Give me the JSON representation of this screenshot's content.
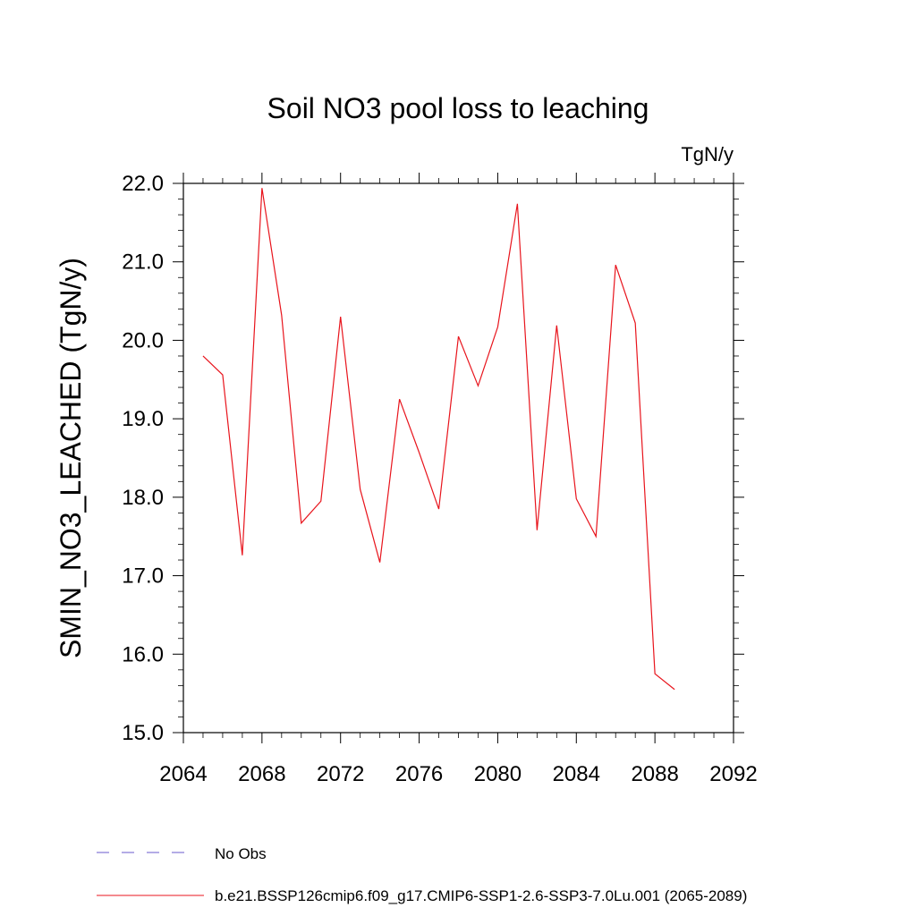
{
  "chart_data": {
    "type": "line",
    "title": "Soil NO3 pool loss to leaching",
    "units_label": "TgN/y",
    "ylabel": "SMIN_NO3_LEACHED  (TgN/y)",
    "xlabel": "",
    "xlim": [
      2064,
      2092
    ],
    "ylim": [
      15.0,
      22.0
    ],
    "x_ticks": [
      "2064",
      "2068",
      "2072",
      "2076",
      "2080",
      "2084",
      "2088",
      "2092"
    ],
    "y_ticks": [
      "15.0",
      "16.0",
      "17.0",
      "18.0",
      "19.0",
      "20.0",
      "21.0",
      "22.0"
    ],
    "grid": false,
    "legend_position": "bottom-left",
    "series": [
      {
        "name": "b.e21.BSSP126cmip6.f09_g17.CMIP6-SSP1-2.6-SSP3-7.0Lu.001 (2065-2089)",
        "color": "#e8141c",
        "style": "solid",
        "x": [
          2065,
          2066,
          2067,
          2068,
          2069,
          2070,
          2071,
          2072,
          2073,
          2074,
          2075,
          2076,
          2077,
          2078,
          2079,
          2080,
          2081,
          2082,
          2083,
          2084,
          2085,
          2086,
          2087,
          2088,
          2089
        ],
        "y": [
          19.8,
          19.56,
          17.26,
          21.94,
          20.32,
          17.67,
          17.95,
          20.3,
          18.1,
          17.17,
          19.25,
          18.57,
          17.85,
          20.05,
          19.42,
          20.17,
          21.74,
          17.58,
          20.19,
          17.98,
          17.5,
          20.96,
          20.22,
          15.75,
          15.55
        ]
      },
      {
        "name": "No Obs",
        "color": "#6a5acd",
        "style": "dashed",
        "x": [],
        "y": []
      }
    ]
  }
}
